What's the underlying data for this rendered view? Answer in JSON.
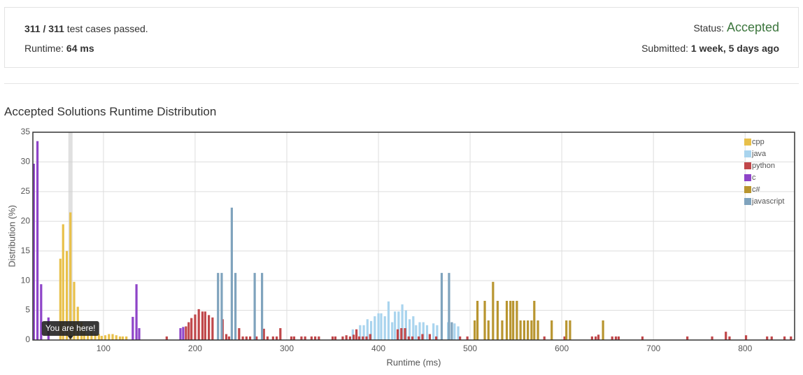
{
  "submission": {
    "passed": "311 / 311",
    "passed_label": "test cases passed.",
    "runtime_label": "Runtime:",
    "runtime": "64 ms",
    "status_label": "Status:",
    "status": "Accepted",
    "submitted_label": "Submitted:",
    "submitted": "1 week, 5 days ago"
  },
  "chart_data": {
    "type": "bar",
    "title": "Accepted Solutions Runtime Distribution",
    "x_label": "Runtime (ms)",
    "y_label": "Distribution (%)",
    "xlim": [
      23,
      854
    ],
    "xticks": [
      100,
      200,
      300,
      400,
      500,
      600,
      700,
      800
    ],
    "ylim": [
      0,
      35
    ],
    "yticks": [
      0,
      5,
      10,
      15,
      20,
      25,
      30,
      35
    ],
    "grid": true,
    "legend": "top-right",
    "highlight": {
      "x": 64,
      "label": "You are here!"
    },
    "series": [
      {
        "name": "cpp",
        "color": "#e8c04a",
        "x": [
          53,
          56,
          60,
          64,
          68,
          72,
          76,
          79,
          83,
          87,
          91,
          95,
          98,
          102,
          106,
          110,
          114,
          118,
          121,
          125
        ],
        "values": [
          13.7,
          19.5,
          15,
          21.5,
          9.8,
          5.6,
          3,
          1.5,
          1,
          1.5,
          1,
          1,
          0.7,
          0.8,
          1,
          1,
          0.8,
          0.6,
          0.6,
          0.6
        ]
      },
      {
        "name": "java",
        "color": "#a9d4ee",
        "x": [
          372,
          376,
          380,
          384,
          388,
          392,
          396,
          400,
          403,
          407,
          411,
          415,
          418,
          422,
          426,
          430,
          434,
          438,
          441,
          445,
          449,
          453,
          460,
          464,
          476,
          483,
          487
        ],
        "values": [
          1.8,
          1.5,
          2.5,
          2.5,
          3.5,
          3.2,
          4,
          4.5,
          4.5,
          4,
          6.5,
          3,
          4.8,
          4.8,
          6,
          5,
          3.5,
          4,
          2.5,
          3,
          3,
          2.5,
          2.8,
          2.5,
          3,
          2.8,
          2.3
        ]
      },
      {
        "name": "python",
        "color": "#c0474a",
        "x": [
          169,
          190,
          193,
          196,
          200,
          204,
          208,
          211,
          215,
          219,
          230,
          234,
          237,
          248,
          252,
          256,
          260,
          267,
          275,
          279,
          285,
          289,
          293,
          305,
          308,
          316,
          320,
          327,
          331,
          335,
          350,
          353,
          361,
          365,
          369,
          373,
          376,
          379,
          383,
          387,
          391,
          421,
          425,
          429,
          433,
          437,
          444,
          448,
          456,
          463,
          489,
          497,
          581,
          603,
          633,
          637,
          640,
          655,
          659,
          662,
          688,
          737,
          764,
          779,
          783,
          801,
          824,
          829,
          843,
          850
        ],
        "values": [
          0.6,
          2.3,
          3,
          3.7,
          4.3,
          5.2,
          4.8,
          4.8,
          4.2,
          3.8,
          3.5,
          1,
          0.6,
          2,
          0.6,
          0.6,
          0.6,
          0.6,
          1.9,
          0.6,
          0.6,
          0.6,
          2,
          0.6,
          0.6,
          0.6,
          0.6,
          0.6,
          0.6,
          0.6,
          0.6,
          0.6,
          0.6,
          0.8,
          0.6,
          0.9,
          1.8,
          0.6,
          0.6,
          0.6,
          1,
          1.8,
          2,
          2,
          0.6,
          0.6,
          0.6,
          1,
          1,
          0.6,
          0.6,
          0.6,
          0.6,
          0.6,
          0.6,
          0.6,
          0.9,
          0.6,
          0.6,
          0.6,
          0.6,
          0.6,
          0.6,
          1.4,
          0.6,
          0.8,
          0.6,
          0.6,
          0.6,
          0.6
        ]
      },
      {
        "name": "c",
        "color": "#8e44c8",
        "x": [
          24,
          28,
          32,
          40,
          132,
          136,
          139,
          184,
          187
        ],
        "values": [
          29.7,
          33.5,
          9.4,
          3.8,
          3.9,
          9.4,
          2,
          2,
          2.2
        ]
      },
      {
        "name": "c#",
        "color": "#b8952f",
        "x": [
          505,
          508,
          516,
          520,
          525,
          530,
          535,
          540,
          544,
          547,
          551,
          555,
          559,
          563,
          567,
          570,
          574,
          589,
          605,
          609,
          645
        ],
        "values": [
          3.3,
          6.6,
          6.6,
          3.3,
          9.8,
          6.6,
          3.3,
          6.6,
          6.6,
          6.6,
          6.6,
          3.3,
          3.3,
          3.3,
          3.3,
          6.6,
          3.3,
          3.3,
          3.3,
          3.3,
          3.3
        ]
      },
      {
        "name": "javascript",
        "color": "#7fa3bd",
        "x": [
          225,
          229,
          240,
          244,
          265,
          273,
          469,
          477,
          480
        ],
        "values": [
          11.3,
          11.3,
          22.3,
          11.3,
          11.3,
          11.3,
          11.3,
          11.3,
          3
        ]
      }
    ]
  }
}
